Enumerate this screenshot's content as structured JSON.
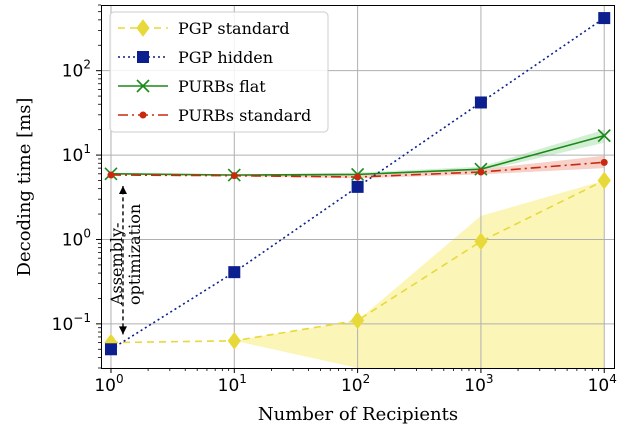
{
  "chart_data": {
    "type": "line",
    "xlabel": "Number of Recipients",
    "ylabel": "Decoding time [ms]",
    "x_scale": "log",
    "y_scale": "log",
    "xlim": [
      0.83,
      12000
    ],
    "ylim": [
      0.03,
      600
    ],
    "grid": true,
    "legend_position": "top-left",
    "x_ticks": [
      {
        "value": 1,
        "label": "10",
        "exp": "0"
      },
      {
        "value": 10,
        "label": "10",
        "exp": "1"
      },
      {
        "value": 100,
        "label": "10",
        "exp": "2"
      },
      {
        "value": 1000,
        "label": "10",
        "exp": "3"
      },
      {
        "value": 10000,
        "label": "10",
        "exp": "4"
      }
    ],
    "y_ticks": [
      {
        "value": 0.1,
        "label": "10",
        "exp": "−1"
      },
      {
        "value": 1,
        "label": "10",
        "exp": "0"
      },
      {
        "value": 10,
        "label": "10",
        "exp": "1"
      },
      {
        "value": 100,
        "label": "10",
        "exp": "2"
      }
    ],
    "x": [
      1,
      10,
      100,
      1000,
      10000
    ],
    "series": [
      {
        "name": "PGP standard",
        "values": [
          0.06,
          0.063,
          0.11,
          0.95,
          5.0
        ],
        "band_low": [
          0.06,
          0.063,
          0.03,
          0.03,
          0.03
        ],
        "band_high": [
          0.06,
          0.063,
          0.11,
          1.9,
          5.0
        ],
        "color": "#e8d93a",
        "band_color": "#fbf6b8",
        "dash": "7,5",
        "marker": "diamond"
      },
      {
        "name": "PGP hidden",
        "values": [
          0.05,
          0.41,
          4.2,
          42,
          420
        ],
        "color": "#0b1f8e",
        "dash": "2,3",
        "marker": "square"
      },
      {
        "name": "PURBs flat",
        "values": [
          6.0,
          5.8,
          5.9,
          6.8,
          17
        ],
        "band_low": [
          6.0,
          5.8,
          5.7,
          6.4,
          14
        ],
        "band_high": [
          6.0,
          5.8,
          6.2,
          7.3,
          20
        ],
        "color": "#1a8a1a",
        "band_color": "#d3efd3",
        "dash": "",
        "marker": "x"
      },
      {
        "name": "PURBs standard",
        "values": [
          5.8,
          5.7,
          5.5,
          6.3,
          8.2
        ],
        "band_low": [
          5.8,
          5.6,
          5.3,
          5.9,
          7.0
        ],
        "band_high": [
          5.8,
          5.8,
          5.8,
          6.8,
          9.8
        ],
        "color": "#c8290f",
        "band_color": "#f7d0c8",
        "dash": "10,4,2,4",
        "marker": "dot"
      }
    ],
    "annotation": {
      "text_line1": "Assembly-",
      "text_line2": "optimization",
      "arrow_x": 1,
      "arrow_from": 0.075,
      "arrow_to": 4.3
    }
  }
}
